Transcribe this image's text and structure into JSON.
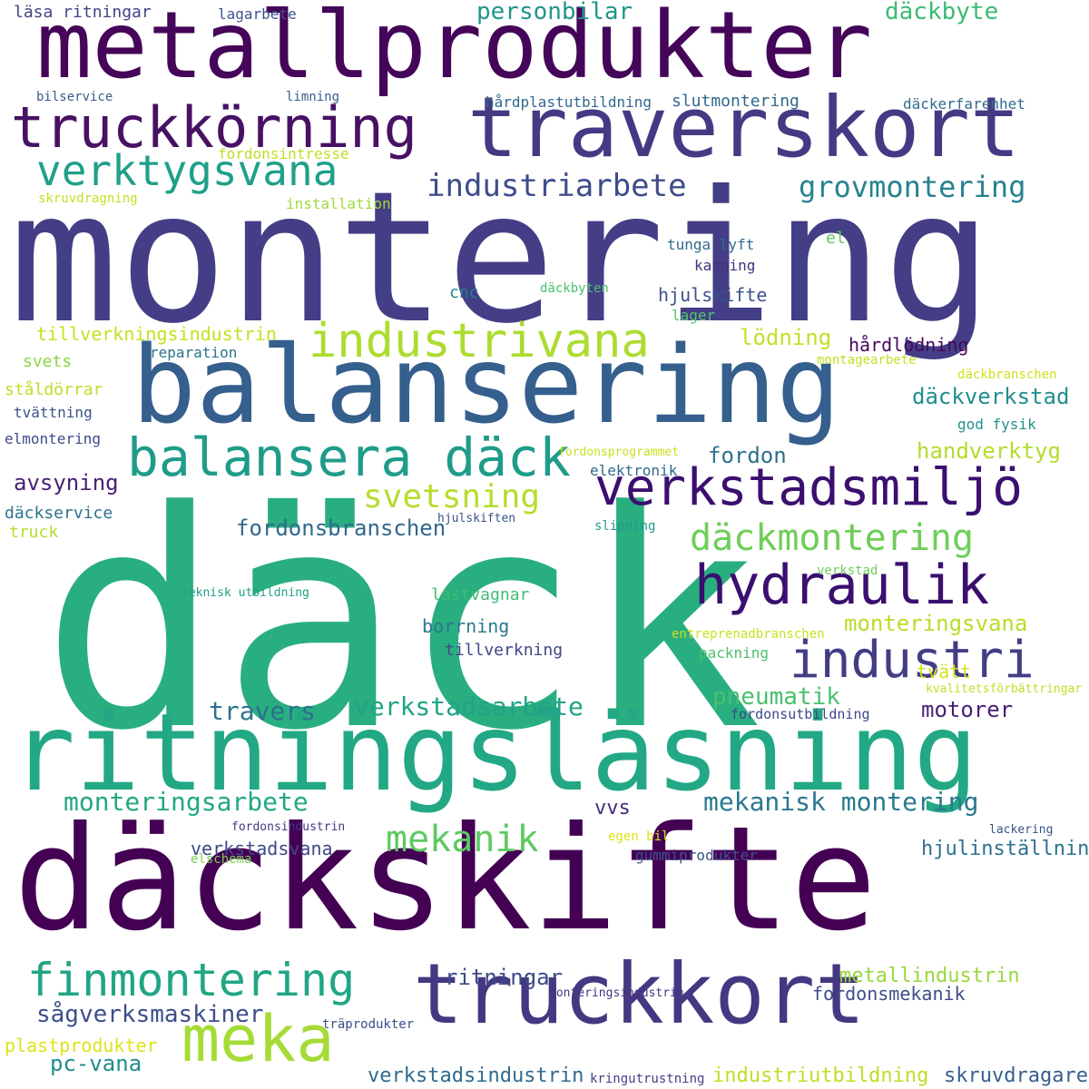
{
  "colors": {
    "background": "#ffffff",
    "palette": [
      "#440154",
      "#482878",
      "#3e4a89",
      "#31688e",
      "#26828e",
      "#1f9e89",
      "#35b779",
      "#6ece58",
      "#b5de2b",
      "#fde725"
    ]
  },
  "words": [
    {
      "text": "däck",
      "color": "#29ae80"
    },
    {
      "text": "montering",
      "color": "#433e85"
    },
    {
      "text": "däckskifte",
      "color": "#440154"
    },
    {
      "text": "ritningsläsning",
      "color": "#22a884"
    },
    {
      "text": "balansering",
      "color": "#355f8d"
    },
    {
      "text": "metallprodukter",
      "color": "#450559"
    },
    {
      "text": "traverskort",
      "color": "#443a83"
    },
    {
      "text": "truckkort",
      "color": "#453781"
    },
    {
      "text": "truckkörning",
      "color": "#471164"
    },
    {
      "text": "balansera däck",
      "color": "#1e9c89"
    },
    {
      "text": "verkstadsmiljö",
      "color": "#3b0f70"
    },
    {
      "text": "industrivana",
      "color": "#addc30"
    },
    {
      "text": "hydraulik",
      "color": "#3a0f6f"
    },
    {
      "text": "industri",
      "color": "#413e85"
    },
    {
      "text": "verktygsvana",
      "color": "#1fa088"
    },
    {
      "text": "finmontering",
      "color": "#21a685"
    },
    {
      "text": "meka",
      "color": "#a5db36"
    },
    {
      "text": "industriarbete",
      "color": "#3e4c8a"
    },
    {
      "text": "grovmontering",
      "color": "#26828e"
    },
    {
      "text": "däckmontering",
      "color": "#6ece58"
    },
    {
      "text": "svetsning",
      "color": "#b5de2b"
    },
    {
      "text": "mekanik",
      "color": "#5ec962"
    },
    {
      "text": "monteringsarbete",
      "color": "#22a884"
    },
    {
      "text": "mekanisk montering",
      "color": "#2a788e"
    },
    {
      "text": "verkstadsarbete",
      "color": "#20a386"
    },
    {
      "text": "travers",
      "color": "#2c728e"
    },
    {
      "text": "pneumatik",
      "color": "#4ac16d"
    },
    {
      "text": "fordonsbranschen",
      "color": "#31688e"
    },
    {
      "text": "monteringsvana",
      "color": "#b8de29"
    },
    {
      "text": "sågverksmaskiner",
      "color": "#3d4e8a"
    },
    {
      "text": "ritningar",
      "color": "#3e4989"
    },
    {
      "text": "pc-vana",
      "color": "#228c8d"
    },
    {
      "text": "personbilar",
      "color": "#1f968b"
    },
    {
      "text": "däckbyte",
      "color": "#3bbb75"
    },
    {
      "text": "lödning",
      "color": "#c2df23"
    },
    {
      "text": "fordon",
      "color": "#2d708e"
    },
    {
      "text": "däckverkstad",
      "color": "#228d8d"
    },
    {
      "text": "handverktyg",
      "color": "#b2dd2d"
    },
    {
      "text": "avsyning",
      "color": "#482173"
    },
    {
      "text": "motorer",
      "color": "#481f71"
    },
    {
      "text": "tvätt",
      "color": "#d2e21b"
    },
    {
      "text": "hjulskifte",
      "color": "#3b528b"
    },
    {
      "text": "hårdlödning",
      "color": "#46085c"
    },
    {
      "text": "tillverkningsindustrin",
      "color": "#c8e020"
    },
    {
      "text": "borrning",
      "color": "#2a788e"
    },
    {
      "text": "lastvagnar",
      "color": "#3dbc74"
    },
    {
      "text": "tillverkning",
      "color": "#3f4788"
    },
    {
      "text": "vvs",
      "color": "#472c7a"
    },
    {
      "text": "verkstadsvana",
      "color": "#3f4889"
    },
    {
      "text": "hjulinställning",
      "color": "#2c728e"
    },
    {
      "text": "metallindustrin",
      "color": "#98d83e"
    },
    {
      "text": "fordonsmekanik",
      "color": "#3e4c8a"
    },
    {
      "text": "gummiprodukter",
      "color": "#3b528b"
    },
    {
      "text": "skruvdragare",
      "color": "#355e8d"
    },
    {
      "text": "industriutbildning",
      "color": "#bddf26"
    },
    {
      "text": "verkstadsindustrin",
      "color": "#2f6b8e"
    },
    {
      "text": "plastprodukter",
      "color": "#dde318"
    },
    {
      "text": "kringutrustning",
      "color": "#433e85"
    },
    {
      "text": "läsa ritningar",
      "color": "#414487"
    },
    {
      "text": "lagarbete",
      "color": "#3b528b"
    },
    {
      "text": "bilservice",
      "color": "#365c8d"
    },
    {
      "text": "limning",
      "color": "#355f8d"
    },
    {
      "text": "hårdplastutbildning",
      "color": "#31688e"
    },
    {
      "text": "slutmontering",
      "color": "#31688e"
    },
    {
      "text": "däckerfarenhet",
      "color": "#2f6c8e"
    },
    {
      "text": "fordonsintresse",
      "color": "#bddf26"
    },
    {
      "text": "skruvdragning",
      "color": "#c5e021"
    },
    {
      "text": "installation",
      "color": "#9fda3a"
    },
    {
      "text": "tunga lyft",
      "color": "#2f6c8e"
    },
    {
      "text": "el",
      "color": "#5ec962"
    },
    {
      "text": "kapning",
      "color": "#46307e"
    },
    {
      "text": "cnc",
      "color": "#277f8e"
    },
    {
      "text": "däckbyten",
      "color": "#4ac16d"
    },
    {
      "text": "lager",
      "color": "#52c569"
    },
    {
      "text": "svets",
      "color": "#8bd646"
    },
    {
      "text": "reparation",
      "color": "#2c728e"
    },
    {
      "text": "ståldörrar",
      "color": "#bddf26"
    },
    {
      "text": "montagearbete",
      "color": "#c2df23"
    },
    {
      "text": "däckbranschen",
      "color": "#d0e11c"
    },
    {
      "text": "tvättning",
      "color": "#3b528b"
    },
    {
      "text": "god fysik",
      "color": "#21918c"
    },
    {
      "text": "elmontering",
      "color": "#3e4a89"
    },
    {
      "text": "fordonsprogrammet",
      "color": "#c8e020"
    },
    {
      "text": "elektronik",
      "color": "#31688e"
    },
    {
      "text": "däckservice",
      "color": "#2c728e"
    },
    {
      "text": "hjulskiften",
      "color": "#3b528b"
    },
    {
      "text": "truck",
      "color": "#b5de2b"
    },
    {
      "text": "slipning",
      "color": "#1f9a8a"
    },
    {
      "text": "verkstad",
      "color": "#6ece58"
    },
    {
      "text": "teknisk utbildning",
      "color": "#1fa187"
    },
    {
      "text": "entreprenadbranschen",
      "color": "#cae11f"
    },
    {
      "text": "packning",
      "color": "#4ac16d"
    },
    {
      "text": "kvalitetsförbättringar",
      "color": "#bddf26"
    },
    {
      "text": "fordonsutbildning",
      "color": "#3e4989"
    },
    {
      "text": "fordonsindustrin",
      "color": "#453882"
    },
    {
      "text": "egen bil",
      "color": "#dde318"
    },
    {
      "text": "lackering",
      "color": "#3b528b"
    },
    {
      "text": "elschema",
      "color": "#7ad151"
    },
    {
      "text": "monteringsindustrin",
      "color": "#46337f"
    },
    {
      "text": "träprodukter",
      "color": "#3e4a89"
    }
  ]
}
